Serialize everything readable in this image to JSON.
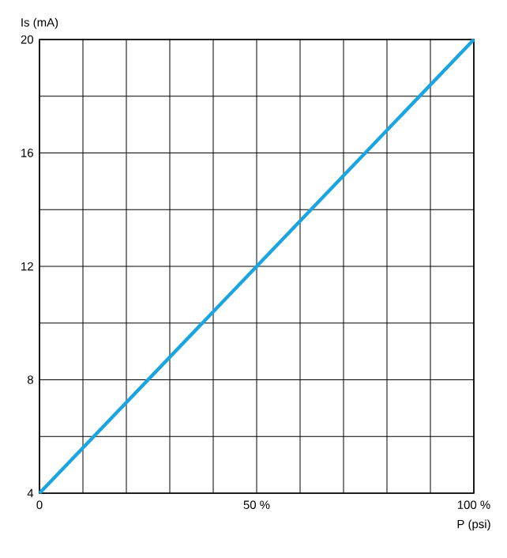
{
  "chart_data": {
    "type": "line",
    "xlabel": "P (psi)",
    "ylabel": "Is (mA)",
    "x": [
      0,
      100
    ],
    "series": [
      {
        "color": "#1ba5e0",
        "values": [
          4,
          20
        ]
      }
    ],
    "xlim": [
      0,
      100
    ],
    "ylim": [
      4,
      20
    ],
    "xticks": [
      0,
      {
        "value": 10,
        "label": null
      },
      {
        "value": 20,
        "label": null
      },
      {
        "value": 30,
        "label": null
      },
      {
        "value": 40,
        "label": null
      },
      {
        "value": 50,
        "label": "50 %"
      },
      {
        "value": 60,
        "label": null
      },
      {
        "value": 70,
        "label": null
      },
      {
        "value": 80,
        "label": null
      },
      {
        "value": 90,
        "label": null
      },
      {
        "value": 100,
        "label": "100 %"
      }
    ],
    "yticks": [
      4,
      {
        "value": 6,
        "label": null
      },
      8,
      {
        "value": 10,
        "label": null
      },
      12,
      {
        "value": 14,
        "label": null
      },
      16,
      {
        "value": 18,
        "label": null
      },
      20
    ],
    "grid": true,
    "line_style": "solid"
  }
}
